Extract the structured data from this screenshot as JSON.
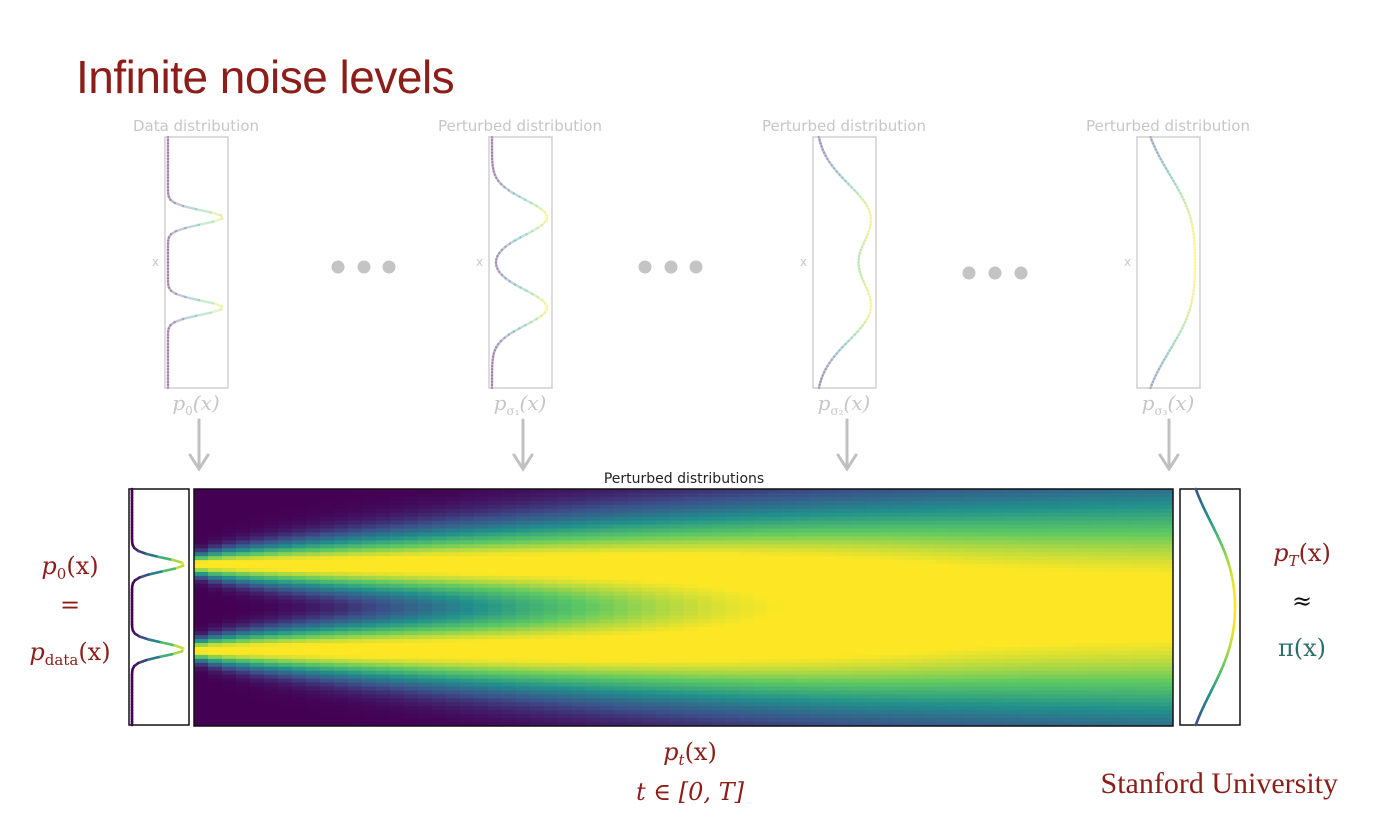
{
  "slide": {
    "title": "Infinite noise levels",
    "footer_brand": "Stanford University"
  },
  "top_panels": [
    {
      "label": "Data distribution",
      "axis_label": "x",
      "caption_base": "p",
      "caption_sub": "0",
      "caption_suffix": "(x)"
    },
    {
      "label": "Perturbed distribution",
      "axis_label": "x",
      "caption_base": "p",
      "caption_sub": "σ₁",
      "caption_suffix": "(x)"
    },
    {
      "label": "Perturbed distribution",
      "axis_label": "x",
      "caption_base": "p",
      "caption_sub": "σ₂",
      "caption_suffix": "(x)"
    },
    {
      "label": "Perturbed distribution",
      "axis_label": "x",
      "caption_base": "p",
      "caption_sub": "σ₃",
      "caption_suffix": "(x)"
    }
  ],
  "heatmap": {
    "title": "Perturbed distributions",
    "bottom_caption_line1_base": "p",
    "bottom_caption_line1_sub": "t",
    "bottom_caption_line1_suffix": "(x)",
    "bottom_caption_line2": "t ∈ [0, T]"
  },
  "left_side": {
    "line1_base": "p",
    "line1_sub": "0",
    "line1_suffix": "(x)",
    "line2": "=",
    "line3_base": "p",
    "line3_sub": "data",
    "line3_suffix": "(x)"
  },
  "right_side": {
    "line1_base": "p",
    "line1_sub": "T",
    "line1_suffix": "(x)",
    "line2": "≈",
    "line3": "π(x)"
  },
  "colors": {
    "title": "#8c1d18",
    "math_red": "#8c1d18",
    "math_teal": "#2c6e6a",
    "faded": "#bdbdbd",
    "viridis_dark": "#440154",
    "viridis_yellow": "#fde725"
  }
}
